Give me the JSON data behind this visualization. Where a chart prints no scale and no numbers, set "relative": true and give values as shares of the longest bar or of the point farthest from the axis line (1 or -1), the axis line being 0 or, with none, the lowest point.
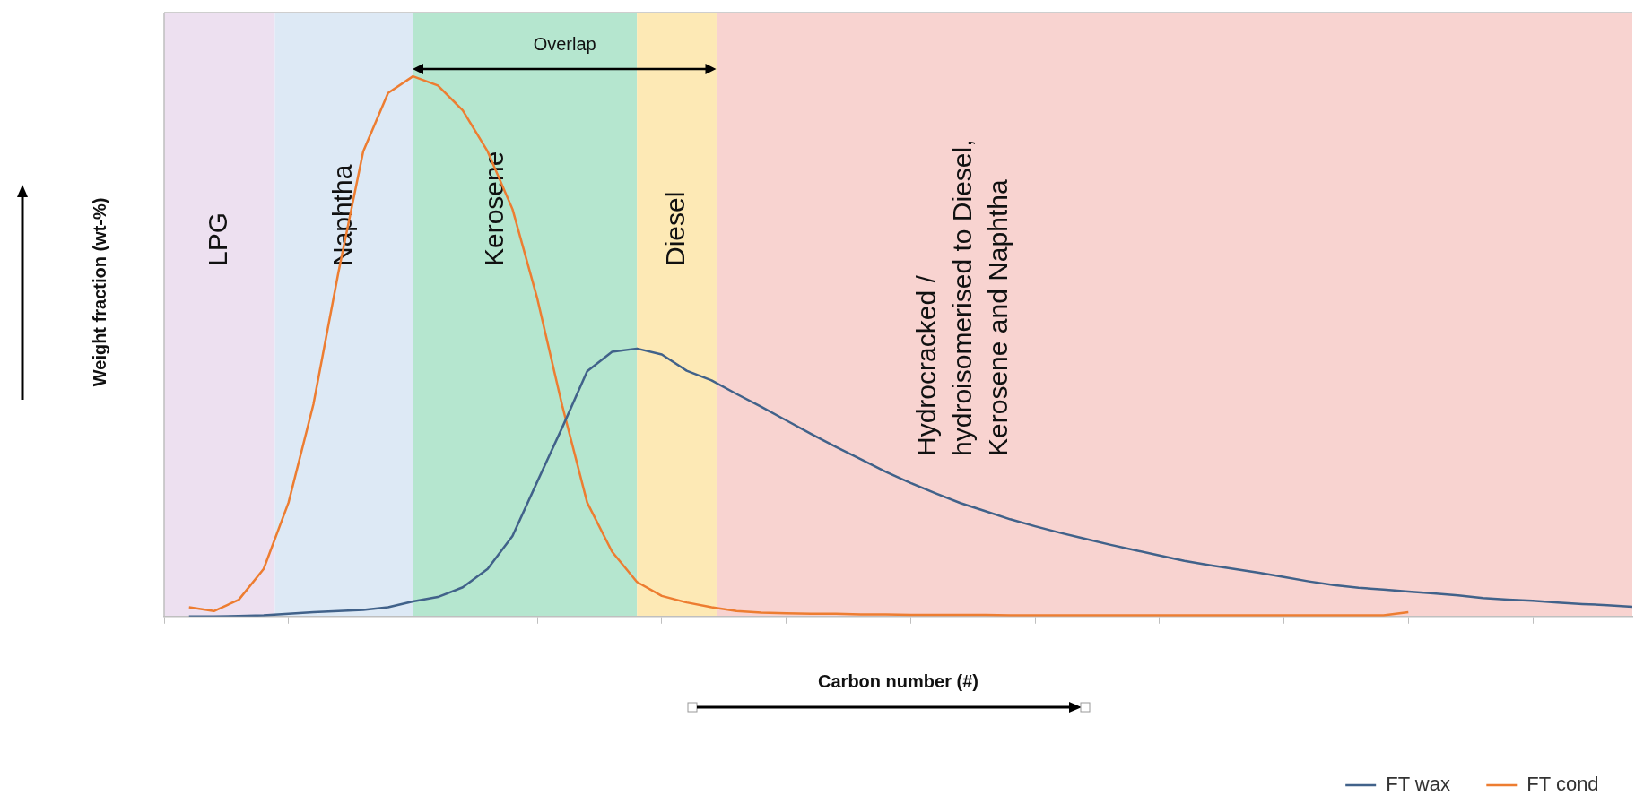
{
  "chart_data": {
    "type": "line",
    "relative": true,
    "xlabel": "Carbon number (#)",
    "ylabel": "Weight fraction (wt-%)",
    "grid": false,
    "legend": "bottom right",
    "categories": [
      null,
      null,
      null,
      null,
      null,
      null,
      null,
      null,
      null,
      null,
      null,
      null,
      null,
      null,
      null,
      null,
      null,
      null,
      null,
      null,
      null,
      null,
      null,
      null,
      null,
      null,
      null,
      null,
      null,
      null,
      null,
      null,
      null,
      null,
      null,
      null,
      null,
      null,
      null,
      null,
      null,
      null,
      null,
      null,
      null,
      null,
      null,
      null,
      null,
      null,
      null,
      null,
      null,
      null,
      null,
      null,
      null,
      null,
      null,
      null
    ],
    "series": [
      {
        "name": "FT wax",
        "color": "#41628a",
        "values": [
          null,
          0,
          0,
          0.001,
          0.002,
          0.005,
          0.008,
          0.01,
          0.012,
          0.017,
          0.028,
          0.036,
          0.054,
          0.088,
          0.149,
          0.25,
          0.35,
          0.454,
          0.49,
          0.496,
          0.485,
          0.455,
          0.437,
          0.412,
          0.388,
          0.363,
          0.338,
          0.314,
          0.291,
          0.268,
          0.247,
          0.228,
          0.21,
          0.195,
          0.18,
          0.167,
          0.155,
          0.144,
          0.133,
          0.123,
          0.113,
          0.103,
          0.095,
          0.088,
          0.081,
          0.073,
          0.065,
          0.058,
          0.053,
          0.05,
          0.046,
          0.043,
          0.039,
          0.034,
          0.031,
          0.029,
          0.026,
          0.023,
          0.021,
          0.018
        ]
      },
      {
        "name": "FT cond",
        "color": "#ed7d31",
        "values": [
          null,
          0.017,
          0.01,
          0.031,
          0.088,
          0.211,
          0.393,
          0.636,
          0.861,
          0.969,
          1,
          0.983,
          0.937,
          0.861,
          0.754,
          0.588,
          0.39,
          0.211,
          0.12,
          0.064,
          0.038,
          0.026,
          0.017,
          0.01,
          0.007,
          0.006,
          0.005,
          0.005,
          0.004,
          0.004,
          0.003,
          0.003,
          0.003,
          0.003,
          0.002,
          0.002,
          0.002,
          0.002,
          0.002,
          0.002,
          0.002,
          0.002,
          0.002,
          0.002,
          0.002,
          0.002,
          0.002,
          0.002,
          0.002,
          0.002,
          0.008,
          null,
          null,
          null,
          null,
          null,
          null,
          null,
          null,
          null
        ]
      }
    ],
    "annotations": [
      "Overlap",
      "LPG",
      "Naphtha",
      "Kerosene",
      "Diesel",
      "Hydrocracked / hydroisomerised to Diesel, Kerosene and Naphtha"
    ]
  }
}
